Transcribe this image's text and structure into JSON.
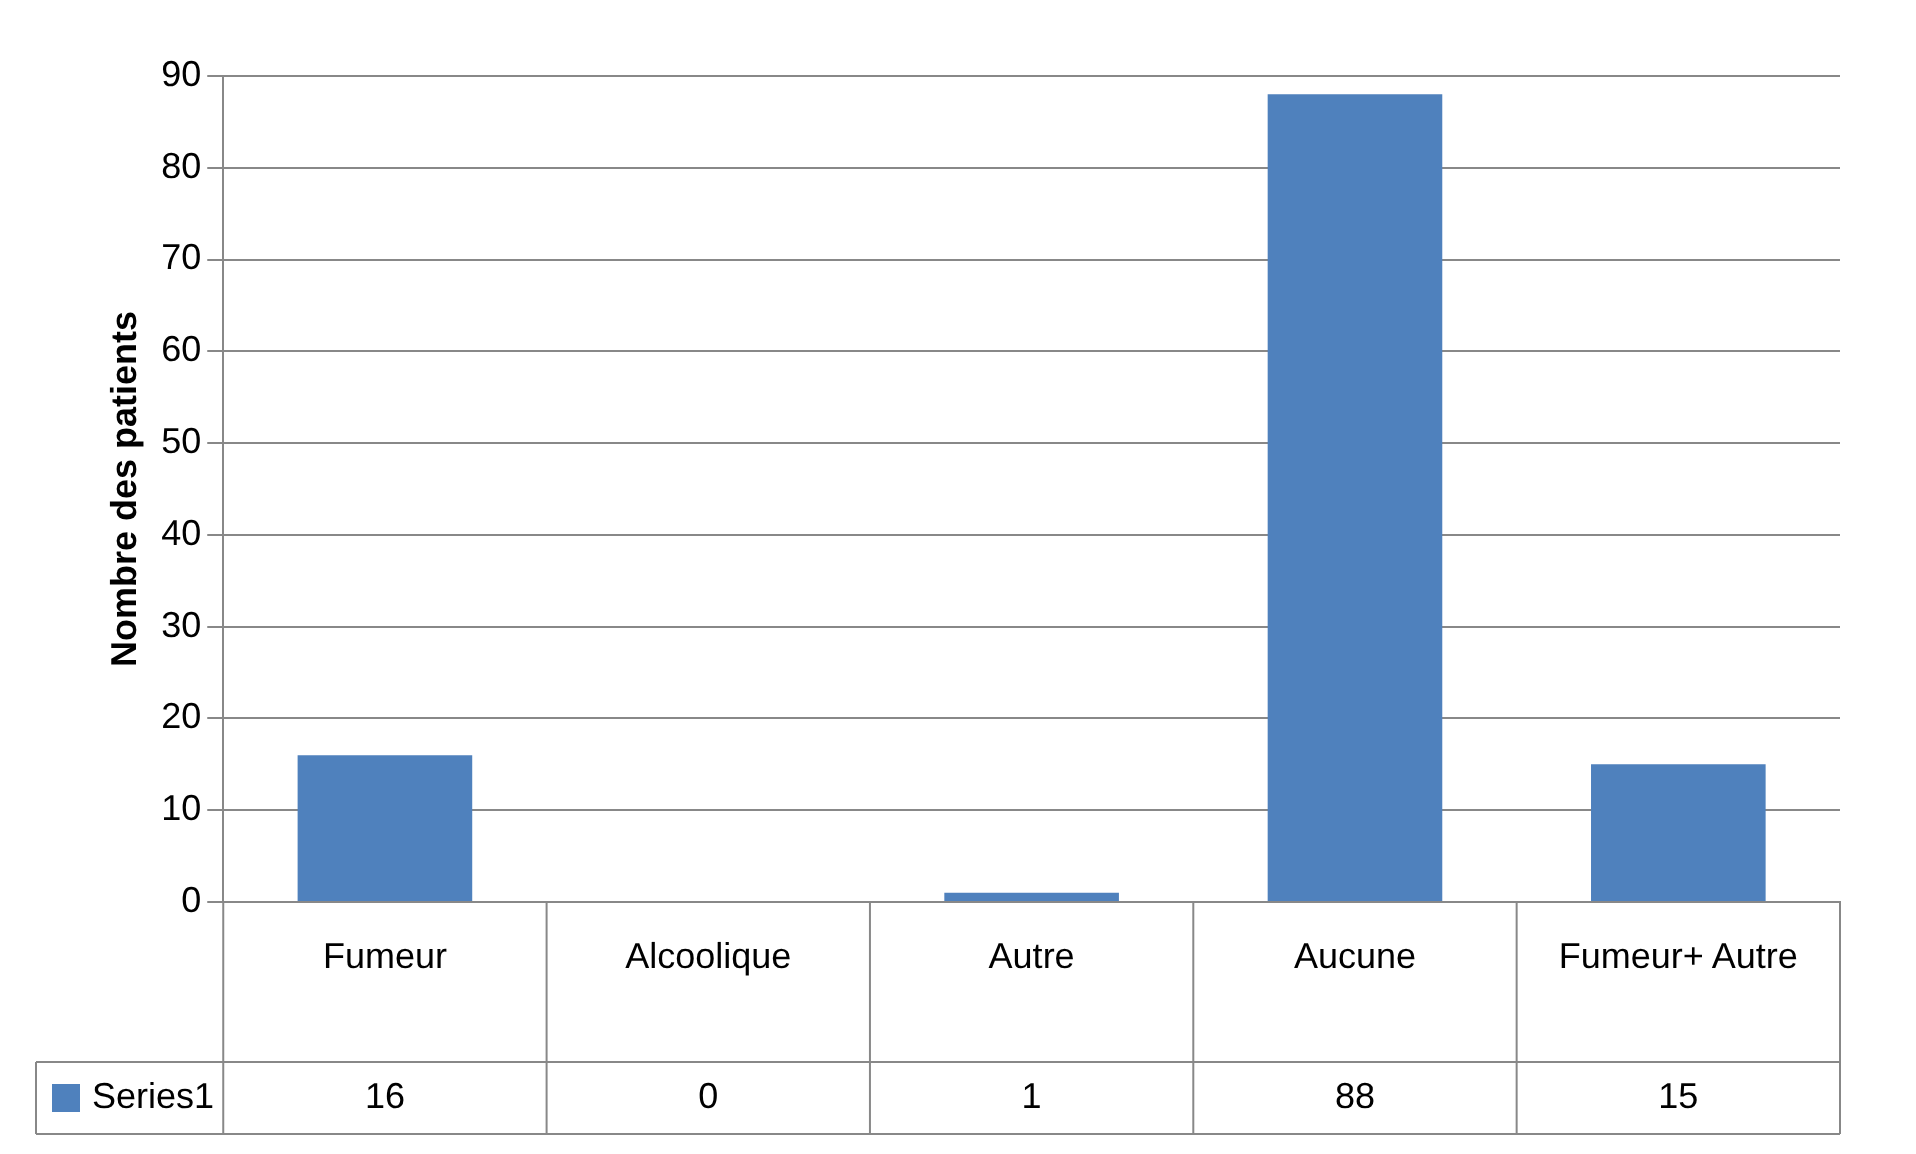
{
  "chart_data": {
    "type": "bar",
    "ylabel": "Nombre des patients",
    "categories": [
      "Fumeur",
      "Alcoolique",
      "Autre",
      "Aucune",
      "Fumeur+ Autre"
    ],
    "series": [
      {
        "name": "Series1",
        "color": "#4f81bd",
        "values": [
          16,
          0,
          1,
          88,
          15
        ]
      }
    ],
    "ylim": [
      0,
      90
    ],
    "yticks": [
      0,
      10,
      20,
      30,
      40,
      50,
      60,
      70,
      80,
      90
    ],
    "grid": "y",
    "legend": "bottom left",
    "data_labels": true
  }
}
